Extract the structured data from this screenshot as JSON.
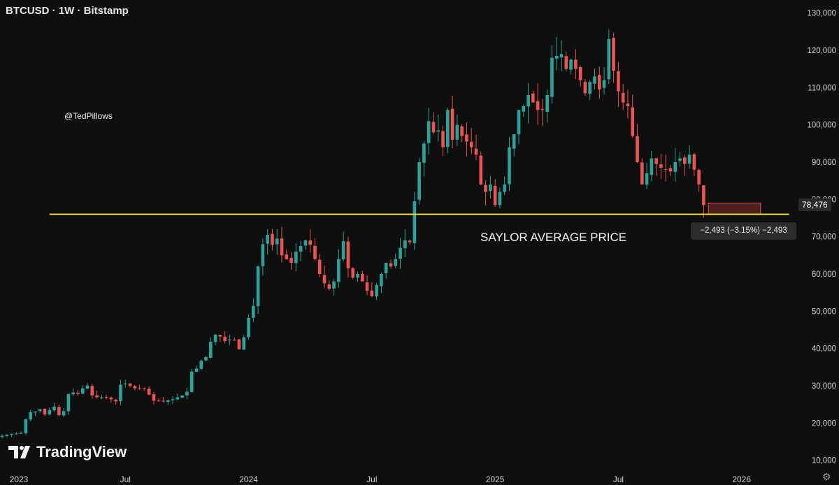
{
  "header": {
    "symbol_line": "BTCUSD · 1W · Bitstamp"
  },
  "watermark": {
    "handle": "@TedPillows",
    "logo_text": "TradingView"
  },
  "annotation": {
    "label": "SAYLOR AVERAGE PRICE"
  },
  "price_tag": {
    "value": "78,476"
  },
  "measure_tag": {
    "text": "−2,493 (−3.15%) −2,493"
  },
  "colors": {
    "up": "#26a69a",
    "down": "#ef5350",
    "level_line": "#f5e33b",
    "background": "#0f0f0f"
  },
  "chart_data": {
    "type": "candlestick",
    "title": "BTCUSD · 1W · Bitstamp",
    "y_axis": {
      "ylim": [
        6000,
        132000
      ],
      "ticks": [
        10000,
        20000,
        30000,
        40000,
        50000,
        60000,
        70000,
        80000,
        90000,
        100000,
        110000,
        120000,
        130000
      ],
      "tick_labels": [
        "10,000",
        "20,000",
        "30,000",
        "40,000",
        "50,000",
        "60,000",
        "70,000",
        "80,000",
        "90,000",
        "100,000",
        "110,000",
        "120,000",
        "130,000"
      ]
    },
    "x_axis": {
      "ticks": [
        0,
        26,
        52,
        78,
        104,
        130,
        156
      ],
      "tick_labels": [
        "2023",
        "Jul",
        "2024",
        "Jul",
        "2025",
        "Jul",
        "2026"
      ]
    },
    "weeks_per_year": 52,
    "horizontal_level": {
      "name": "Saylor average price",
      "price": 76000,
      "x_start": 10,
      "x_end": 166
    },
    "last_price": 78476,
    "measure_box": {
      "price_top": 79000,
      "price_bottom": 76000,
      "week_start": 149,
      "week_end": 160
    },
    "close_path": [
      [
        0,
        16600
      ],
      [
        2,
        17100
      ],
      [
        4,
        17300
      ],
      [
        5,
        21000
      ],
      [
        6,
        22900
      ],
      [
        7,
        23100
      ],
      [
        8,
        23700
      ],
      [
        9,
        22300
      ],
      [
        10,
        23500
      ],
      [
        11,
        24400
      ],
      [
        12,
        22100
      ],
      [
        13,
        23200
      ],
      [
        14,
        27800
      ],
      [
        15,
        28200
      ],
      [
        16,
        27800
      ],
      [
        17,
        29300
      ],
      [
        18,
        30100
      ],
      [
        19,
        27400
      ],
      [
        20,
        26900
      ],
      [
        22,
        26900
      ],
      [
        24,
        25800
      ],
      [
        25,
        30300
      ],
      [
        26,
        30600
      ],
      [
        28,
        29300
      ],
      [
        30,
        29200
      ],
      [
        32,
        26000
      ],
      [
        34,
        25800
      ],
      [
        36,
        26400
      ],
      [
        38,
        27400
      ],
      [
        39,
        28400
      ],
      [
        40,
        33800
      ],
      [
        41,
        34600
      ],
      [
        42,
        36700
      ],
      [
        43,
        37700
      ],
      [
        44,
        41800
      ],
      [
        45,
        43700
      ],
      [
        46,
        43200
      ],
      [
        47,
        42000
      ],
      [
        48,
        42400
      ],
      [
        49,
        42300
      ],
      [
        50,
        39800
      ],
      [
        51,
        43000
      ],
      [
        52,
        48200
      ],
      [
        53,
        51400
      ],
      [
        54,
        62000
      ],
      [
        55,
        68000
      ],
      [
        56,
        70500
      ],
      [
        57,
        67800
      ],
      [
        58,
        69500
      ],
      [
        59,
        65000
      ],
      [
        60,
        64000
      ],
      [
        61,
        63000
      ],
      [
        62,
        66000
      ],
      [
        63,
        67500
      ],
      [
        64,
        69000
      ],
      [
        65,
        67800
      ],
      [
        66,
        64000
      ],
      [
        67,
        60000
      ],
      [
        68,
        57500
      ],
      [
        69,
        56000
      ],
      [
        70,
        58000
      ],
      [
        71,
        64000
      ],
      [
        72,
        68800
      ],
      [
        73,
        61500
      ],
      [
        74,
        59000
      ],
      [
        75,
        60000
      ],
      [
        76,
        58000
      ],
      [
        77,
        55500
      ],
      [
        78,
        54000
      ],
      [
        79,
        57000
      ],
      [
        80,
        60000
      ],
      [
        81,
        63000
      ],
      [
        82,
        62000
      ],
      [
        83,
        64000
      ],
      [
        84,
        67000
      ],
      [
        85,
        69000
      ],
      [
        86,
        68500
      ],
      [
        87,
        79500
      ],
      [
        88,
        90000
      ],
      [
        89,
        95000
      ],
      [
        90,
        101000
      ],
      [
        91,
        98000
      ],
      [
        92,
        98500
      ],
      [
        93,
        94000
      ],
      [
        94,
        104000
      ],
      [
        95,
        96000
      ],
      [
        96,
        100000
      ],
      [
        97,
        97000
      ],
      [
        98,
        95500
      ],
      [
        99,
        94000
      ],
      [
        100,
        92000
      ],
      [
        101,
        84000
      ],
      [
        102,
        82000
      ],
      [
        103,
        84000
      ],
      [
        104,
        78500
      ],
      [
        105,
        82000
      ],
      [
        106,
        84000
      ],
      [
        107,
        94000
      ],
      [
        108,
        97500
      ],
      [
        109,
        104000
      ],
      [
        110,
        105000
      ],
      [
        111,
        108000
      ],
      [
        112,
        106000
      ],
      [
        113,
        104000
      ],
      [
        114,
        104000
      ],
      [
        115,
        108000
      ],
      [
        116,
        118000
      ],
      [
        117,
        118500
      ],
      [
        118,
        119000
      ],
      [
        119,
        115000
      ],
      [
        120,
        117500
      ],
      [
        121,
        115000
      ],
      [
        122,
        112000
      ],
      [
        123,
        108500
      ],
      [
        124,
        111500
      ],
      [
        125,
        113000
      ],
      [
        126,
        109500
      ],
      [
        127,
        112000
      ],
      [
        128,
        123000
      ],
      [
        129,
        114500
      ],
      [
        130,
        109000
      ],
      [
        131,
        106000
      ],
      [
        132,
        105000
      ],
      [
        133,
        97000
      ],
      [
        134,
        90000
      ],
      [
        135,
        84000
      ],
      [
        136,
        87000
      ],
      [
        137,
        91000
      ],
      [
        138,
        89500
      ],
      [
        139,
        88500
      ],
      [
        140,
        88000
      ],
      [
        141,
        87500
      ],
      [
        142,
        90000
      ],
      [
        143,
        91000
      ],
      [
        144,
        89500
      ],
      [
        145,
        92000
      ],
      [
        146,
        88000
      ],
      [
        147,
        84000
      ],
      [
        148,
        78476
      ]
    ]
  }
}
